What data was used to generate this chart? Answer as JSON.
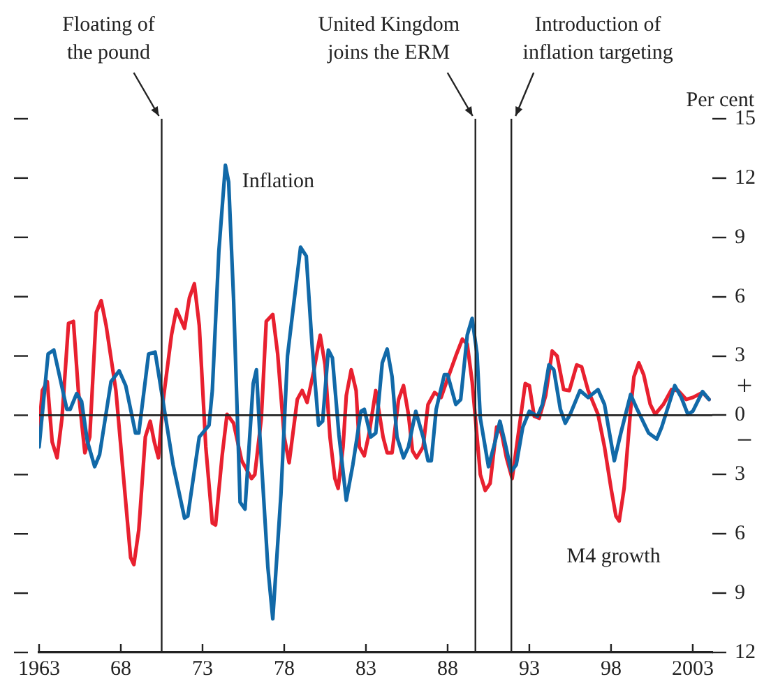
{
  "chart_data": {
    "type": "line",
    "ylabel": "Per cent",
    "xlim": [
      1963,
      2004.2
    ],
    "xticks": [
      {
        "value": 1963,
        "label": "1963"
      },
      {
        "value": 1968,
        "label": "68"
      },
      {
        "value": 1973,
        "label": "73"
      },
      {
        "value": 1978,
        "label": "78"
      },
      {
        "value": 1983,
        "label": "83"
      },
      {
        "value": 1988,
        "label": "88"
      },
      {
        "value": 1993,
        "label": "93"
      },
      {
        "value": 1998,
        "label": "98"
      },
      {
        "value": 2003,
        "label": "2003"
      }
    ],
    "ylim": [
      -12,
      15
    ],
    "yticks": [
      15,
      12,
      9,
      6,
      3,
      0,
      {
        "value": -3,
        "label": "3"
      },
      {
        "value": -6,
        "label": "6"
      },
      {
        "value": -9,
        "label": "9"
      },
      {
        "value": -12,
        "label": "12"
      }
    ],
    "series": [
      {
        "name": "Inflation",
        "color": "#1169a8",
        "x": [
          1963.0,
          1963.55,
          1963.9,
          1964.26,
          1964.7,
          1964.9,
          1965.3,
          1965.6,
          1965.95,
          1966.4,
          1966.7,
          1967.4,
          1967.9,
          1968.3,
          1968.9,
          1969.1,
          1969.7,
          1970.1,
          1970.7,
          1971.2,
          1971.9,
          1972.1,
          1972.8,
          1973.4,
          1973.6,
          1974.0,
          1974.4,
          1974.6,
          1974.9,
          1975.3,
          1975.6,
          1976.1,
          1976.3,
          1976.5,
          1977.0,
          1977.3,
          1977.8,
          1978.2,
          1979.0,
          1979.35,
          1979.7,
          1980.1,
          1980.35,
          1980.7,
          1980.95,
          1981.35,
          1981.8,
          1982.2,
          1982.7,
          1982.9,
          1983.3,
          1983.6,
          1984.0,
          1984.3,
          1984.6,
          1984.9,
          1985.3,
          1985.6,
          1986.05,
          1986.5,
          1986.8,
          1987.0,
          1987.3,
          1987.8,
          1988.0,
          1988.5,
          1988.8,
          1989.2,
          1989.5,
          1989.8,
          1990.0,
          1990.5,
          1990.9,
          1991.2,
          1991.5,
          1991.9,
          1992.2,
          1992.6,
          1993.0,
          1993.5,
          1993.8,
          1994.2,
          1994.5,
          1994.9,
          1995.2,
          1995.5,
          1996.1,
          1996.6,
          1997.2,
          1997.6,
          1998.2,
          1998.6,
          1999.2,
          1999.6,
          2000.3,
          2000.8,
          2001.1,
          2001.9,
          2002.3,
          2002.7,
          2003.0,
          2003.6,
          2004.0
        ],
        "values": [
          -1.6,
          3.1,
          3.3,
          1.95,
          0.3,
          0.3,
          1.1,
          0.7,
          -1.3,
          -2.6,
          -2.0,
          1.7,
          2.25,
          1.5,
          -0.9,
          -0.9,
          3.1,
          3.2,
          0.1,
          -2.5,
          -5.2,
          -5.1,
          -1.1,
          -0.5,
          1.25,
          8.3,
          12.65,
          11.8,
          5.9,
          -4.4,
          -4.75,
          1.6,
          2.3,
          -0.9,
          -7.7,
          -10.3,
          -4.0,
          3.0,
          8.5,
          8.05,
          3.6,
          -0.5,
          -0.3,
          3.3,
          2.9,
          -1.0,
          -4.3,
          -2.5,
          0.2,
          0.3,
          -1.1,
          -0.9,
          2.65,
          3.35,
          1.95,
          -1.1,
          -2.15,
          -1.6,
          0.2,
          -1.1,
          -2.3,
          -2.3,
          0.3,
          2.05,
          2.05,
          0.55,
          0.8,
          4.05,
          4.9,
          3.1,
          -0.15,
          -2.6,
          -1.35,
          -0.3,
          -1.35,
          -2.85,
          -2.5,
          -0.6,
          0.2,
          -0.05,
          0.55,
          2.55,
          2.3,
          0.3,
          -0.4,
          0.05,
          1.25,
          0.9,
          1.3,
          0.55,
          -2.3,
          -0.9,
          1.05,
          0.3,
          -0.9,
          -1.2,
          -0.6,
          1.5,
          0.9,
          0.05,
          0.2,
          1.2,
          0.8
        ]
      },
      {
        "name": "M4 growth",
        "color": "#e8202f",
        "x": [
          1963.0,
          1963.2,
          1963.5,
          1963.8,
          1964.1,
          1964.4,
          1964.8,
          1965.1,
          1965.4,
          1965.8,
          1966.1,
          1966.5,
          1966.8,
          1967.1,
          1967.7,
          1968.2,
          1968.6,
          1968.8,
          1969.1,
          1969.5,
          1969.8,
          1970.05,
          1970.3,
          1970.6,
          1971.1,
          1971.4,
          1971.9,
          1972.2,
          1972.5,
          1972.8,
          1973.2,
          1973.6,
          1973.8,
          1974.2,
          1974.5,
          1974.9,
          1975.4,
          1976.0,
          1976.2,
          1976.6,
          1976.9,
          1977.3,
          1977.6,
          1978.0,
          1978.3,
          1978.8,
          1979.1,
          1979.4,
          1979.8,
          1980.2,
          1980.5,
          1980.8,
          1981.1,
          1981.3,
          1981.6,
          1981.8,
          1982.1,
          1982.4,
          1982.6,
          1982.9,
          1983.2,
          1983.6,
          1984.05,
          1984.3,
          1984.6,
          1985.0,
          1985.3,
          1985.6,
          1985.85,
          1986.1,
          1986.5,
          1986.8,
          1987.2,
          1987.6,
          1988.0,
          1988.5,
          1988.9,
          1989.2,
          1989.5,
          1989.7,
          1990.0,
          1990.3,
          1990.6,
          1991.0,
          1991.3,
          1991.6,
          1991.95,
          1992.3,
          1992.75,
          1993.0,
          1993.3,
          1993.6,
          1994.0,
          1994.4,
          1994.7,
          1995.1,
          1995.45,
          1995.9,
          1996.2,
          1996.6,
          1997.2,
          1997.6,
          1998.0,
          1998.3,
          1998.5,
          1998.8,
          1999.2,
          1999.4,
          1999.7,
          2000.0,
          2000.4,
          2000.7,
          2001.2,
          2001.7,
          2002.1,
          2002.6,
          2003.0,
          2003.6,
          2004.0
        ],
        "values": [
          -0.6,
          1.25,
          1.7,
          -1.35,
          -2.15,
          -0.15,
          4.65,
          4.75,
          1.25,
          -1.9,
          -1.1,
          5.2,
          5.8,
          4.55,
          1.25,
          -3.45,
          -7.2,
          -7.55,
          -5.8,
          -1.1,
          -0.3,
          -1.35,
          -2.15,
          0.8,
          4.05,
          5.35,
          4.4,
          5.95,
          6.65,
          4.55,
          -1.6,
          -5.45,
          -5.55,
          -2.05,
          0.05,
          -0.4,
          -2.3,
          -3.2,
          -3.0,
          -0.15,
          4.75,
          5.1,
          3.1,
          -1.1,
          -2.4,
          0.8,
          1.25,
          0.65,
          2.2,
          4.05,
          2.55,
          -1.1,
          -3.2,
          -3.7,
          -1.6,
          1.0,
          2.3,
          1.25,
          -1.6,
          -2.05,
          -0.9,
          1.25,
          -1.1,
          -1.9,
          -1.9,
          0.8,
          1.5,
          0.05,
          -1.8,
          -2.15,
          -1.6,
          0.55,
          1.15,
          0.9,
          1.85,
          3.0,
          3.85,
          3.6,
          1.7,
          -0.15,
          -3.0,
          -3.8,
          -3.45,
          -0.6,
          -0.9,
          -2.15,
          -3.2,
          -1.1,
          1.6,
          1.5,
          -0.05,
          -0.15,
          1.0,
          3.25,
          3.0,
          1.3,
          1.25,
          2.55,
          2.45,
          1.25,
          0.05,
          -1.6,
          -3.7,
          -5.1,
          -5.35,
          -3.7,
          0.3,
          1.95,
          2.65,
          2.05,
          0.55,
          0.05,
          0.55,
          1.3,
          1.25,
          0.8,
          0.9,
          1.15,
          0.8
        ]
      }
    ],
    "ref_lines": [
      {
        "axis": "x",
        "value": 1970.5,
        "label": "Floating of\nthe pound"
      },
      {
        "axis": "x",
        "value": 1989.7,
        "label": "United Kingdom\njoins the ERM"
      },
      {
        "axis": "x",
        "value": 1991.9,
        "label": "Introduction of\ninflation targeting"
      }
    ],
    "annotations": [
      "+",
      "−"
    ],
    "marker": "none",
    "line_style": "solid",
    "legend": false
  }
}
